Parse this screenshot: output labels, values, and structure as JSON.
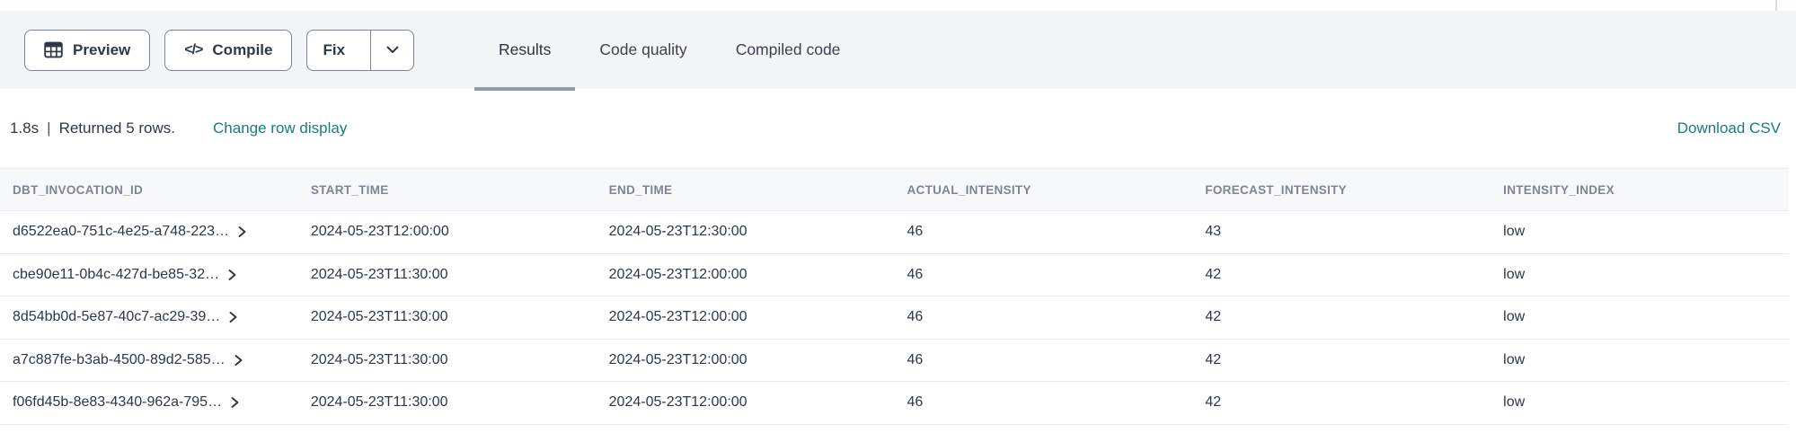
{
  "toolbar": {
    "preview_label": "Preview",
    "compile_label": "Compile",
    "fix_label": "Fix",
    "compile_glyph": "</>"
  },
  "tabs": [
    {
      "label": "Results",
      "active": true
    },
    {
      "label": "Code quality",
      "active": false
    },
    {
      "label": "Compiled code",
      "active": false
    }
  ],
  "status": {
    "duration": "1.8s",
    "pipe": "|",
    "message": "Returned 5 rows.",
    "change_row_display_label": "Change row display",
    "download_csv_label": "Download CSV"
  },
  "table": {
    "columns": [
      "DBT_INVOCATION_ID",
      "START_TIME",
      "END_TIME",
      "ACTUAL_INTENSITY",
      "FORECAST_INTENSITY",
      "INTENSITY_INDEX"
    ],
    "rows": [
      [
        "d6522ea0-751c-4e25-a748-223…",
        "2024-05-23T12:00:00",
        "2024-05-23T12:30:00",
        "46",
        "43",
        "low"
      ],
      [
        "cbe90e11-0b4c-427d-be85-32…",
        "2024-05-23T11:30:00",
        "2024-05-23T12:00:00",
        "46",
        "42",
        "low"
      ],
      [
        "8d54bb0d-5e87-40c7-ac29-39…",
        "2024-05-23T11:30:00",
        "2024-05-23T12:00:00",
        "46",
        "42",
        "low"
      ],
      [
        "a7c887fe-b3ab-4500-89d2-585…",
        "2024-05-23T11:30:00",
        "2024-05-23T12:00:00",
        "46",
        "42",
        "low"
      ],
      [
        "f06fd45b-8e83-4340-962a-795…",
        "2024-05-23T11:30:00",
        "2024-05-23T12:00:00",
        "46",
        "42",
        "low"
      ]
    ]
  },
  "colors": {
    "toolbar_bg": "#f4f5f6",
    "button_border": "#7c8593",
    "accent_teal": "#197d76",
    "active_tab_underline": "#949da8",
    "header_text": "#7d8694",
    "header_bg": "#f7f8fa",
    "row_border": "#e8eaee",
    "body_text": "#2e3944"
  }
}
